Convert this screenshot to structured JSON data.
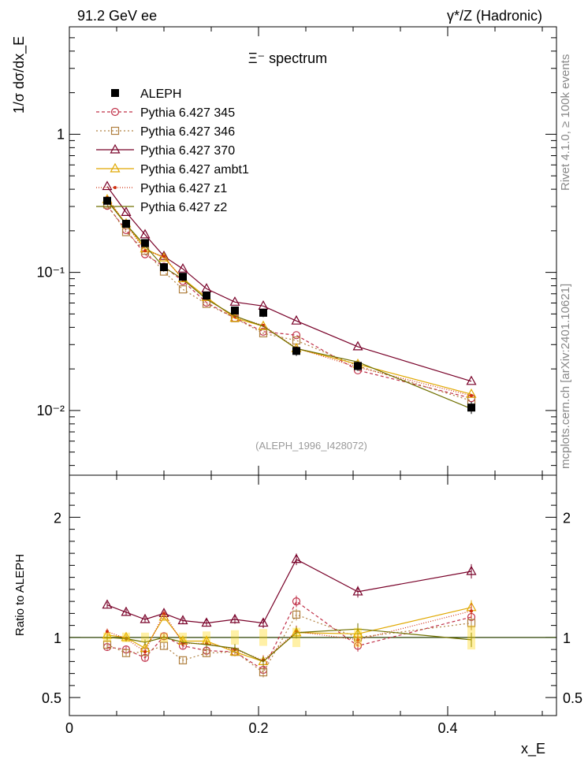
{
  "header": {
    "left": "91.2 GeV ee",
    "right": "γ*/Z (Hadronic)",
    "side_text": "mcplots.cern.ch [arXiv:2401.10621]",
    "rivet_text": "Rivet 4.1.0, ≥ 100k events"
  },
  "chart_data": {
    "type": "line",
    "title": "Ξ⁻ spectrum",
    "xlabel": "x_E",
    "ylabel": "1/σ  dσ/dx_E",
    "ratio_ylabel": "Ratio to ALEPH",
    "annotation": "(ALEPH_1996_I428072)",
    "xlim": [
      0,
      0.515
    ],
    "ylim": [
      0.0034,
      6.0
    ],
    "yscale": "log",
    "ratio_ylim": [
      0.35,
      2.35
    ],
    "x_ticks": [
      0,
      0.2,
      0.4
    ],
    "x_tick_labels": [
      "0",
      "0.2",
      "0.4"
    ],
    "y_ticks": [
      0.01,
      0.1,
      1
    ],
    "y_tick_labels": [
      "10⁻²",
      "10⁻¹",
      "1"
    ],
    "ratio_ticks": [
      0.5,
      1,
      2
    ],
    "ratio_tick_labels": [
      "0.5",
      "1",
      "2"
    ],
    "x": [
      0.04,
      0.06,
      0.08,
      0.1,
      0.12,
      0.145,
      0.175,
      0.205,
      0.24,
      0.305,
      0.425
    ],
    "data": {
      "name": "ALEPH",
      "values": [
        0.33,
        0.225,
        0.163,
        0.109,
        0.093,
        0.068,
        0.053,
        0.051,
        0.027,
        0.021,
        0.0105
      ],
      "ratio_err": [
        0.04,
        0.04,
        0.04,
        0.04,
        0.04,
        0.05,
        0.06,
        0.07,
        0.08,
        0.08,
        0.1
      ]
    },
    "series": [
      {
        "name": "Pythia 6.427 345",
        "color": "#c03048",
        "marker": "circle",
        "dash": "4,3",
        "ratio": [
          0.92,
          0.9,
          0.83,
          1.01,
          0.93,
          0.89,
          0.88,
          0.73,
          1.3,
          0.93,
          1.17
        ]
      },
      {
        "name": "Pythia 6.427 346",
        "color": "#b08040",
        "marker": "square",
        "dash": "2,3",
        "ratio": [
          0.94,
          0.87,
          0.88,
          0.93,
          0.81,
          0.87,
          0.88,
          0.71,
          1.19,
          1.0,
          1.12
        ]
      },
      {
        "name": "Pythia 6.427 370",
        "color": "#780028",
        "marker": "triangle",
        "dash": "",
        "ratio": [
          1.27,
          1.21,
          1.15,
          1.2,
          1.14,
          1.12,
          1.15,
          1.12,
          1.65,
          1.38,
          1.55
        ]
      },
      {
        "name": "Pythia 6.427 ambt1",
        "color": "#e0a800",
        "marker": "triangle",
        "dash": "",
        "ratio": [
          1.02,
          1.0,
          0.91,
          1.17,
          0.97,
          0.97,
          0.88,
          0.8,
          1.04,
          1.03,
          1.25
        ]
      },
      {
        "name": "Pythia 6.427 z1",
        "color": "#d03010",
        "marker": "star",
        "dash": "1,2",
        "ratio": [
          1.05,
          0.99,
          0.88,
          1.2,
          0.95,
          0.95,
          0.9,
          0.81,
          1.05,
          0.98,
          1.22
        ]
      },
      {
        "name": "Pythia 6.427 z2",
        "color": "#707000",
        "marker": "none",
        "dash": "",
        "ratio": [
          1.0,
          0.99,
          0.96,
          1.0,
          0.96,
          0.94,
          0.91,
          0.8,
          1.04,
          1.07,
          0.98
        ]
      }
    ]
  }
}
